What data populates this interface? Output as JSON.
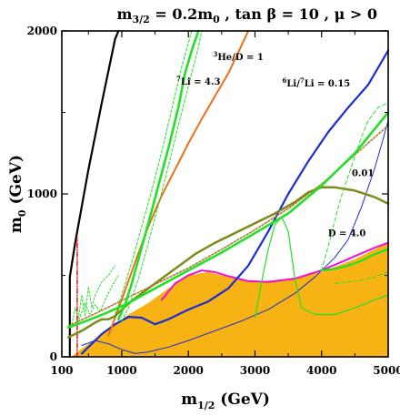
{
  "chart_data": {
    "type": "line",
    "title": {
      "m": "m",
      "m_sub": "3/2",
      "eq": " = 0.2m",
      "sub0": "0",
      "rest": " , tan β = 10 ,  μ > 0"
    },
    "xlabel": {
      "m": "m",
      "sub": "1/2",
      "unit": " (GeV)"
    },
    "ylabel": {
      "m": "m",
      "sub": "0",
      "unit": " (GeV)"
    },
    "xlim": [
      100,
      5000
    ],
    "ylim": [
      0,
      2000
    ],
    "xticks": [
      {
        "v": 100,
        "label": "100"
      },
      {
        "v": 1000,
        "label": "1000"
      },
      {
        "v": 2000,
        "label": "2000"
      },
      {
        "v": 3000,
        "label": "3000"
      },
      {
        "v": 4000,
        "label": "4000"
      },
      {
        "v": 5000,
        "label": "5000"
      }
    ],
    "yticks": [
      {
        "v": 0,
        "label": "0"
      },
      {
        "v": 1000,
        "label": "1000"
      },
      {
        "v": 2000,
        "label": "2000"
      }
    ],
    "annotations": [
      {
        "id": "he3",
        "pre": "3",
        "text": "He/D = 1",
        "x": 2750,
        "y": 1820
      },
      {
        "id": "li7",
        "pre": "7",
        "text": "Li = 4.3",
        "x": 2150,
        "y": 1670
      },
      {
        "id": "li6",
        "pre": "6",
        "text": "Li/",
        "pre2": "7",
        "text2": "Li = 0.15",
        "x": 3920,
        "y": 1660
      },
      {
        "id": "v001",
        "text": "0.01",
        "x": 4620,
        "y": 1110
      },
      {
        "id": "d4",
        "text": "D = 4.0",
        "x": 4380,
        "y": 740
      }
    ],
    "colors": {
      "fill": "#f7b313",
      "green": "#22e026",
      "orange": "#ea6f1a",
      "blue": "#1a2ed2",
      "olive": "#7c8c16",
      "magenta": "#f00fd8",
      "black": "#000000",
      "red": "#dd1414",
      "brown": "#b07a32"
    },
    "region": [
      [
        100,
        0
      ],
      [
        5000,
        0
      ],
      [
        5000,
        700
      ],
      [
        4500,
        600
      ],
      [
        4000,
        520
      ],
      [
        3500,
        480
      ],
      [
        3000,
        460
      ],
      [
        2800,
        470
      ],
      [
        2500,
        500
      ],
      [
        2300,
        520
      ],
      [
        2000,
        500
      ],
      [
        1700,
        420
      ],
      [
        1400,
        330
      ],
      [
        1100,
        260
      ],
      [
        900,
        200
      ],
      [
        700,
        140
      ],
      [
        500,
        80
      ],
      [
        300,
        20
      ],
      [
        250,
        0
      ]
    ],
    "series": [
      {
        "id": "black-line",
        "color": "black",
        "width": 2.2,
        "pts": [
          [
            220,
            0
          ],
          [
            220,
            490
          ],
          [
            300,
            700
          ],
          [
            500,
            1150
          ],
          [
            700,
            1560
          ],
          [
            900,
            1950
          ],
          [
            950,
            2000
          ]
        ]
      },
      {
        "id": "red-dashdot",
        "color": "red",
        "width": 1.5,
        "dash": "5,2,1,2",
        "pts": [
          [
            330,
            0
          ],
          [
            330,
            730
          ]
        ]
      },
      {
        "id": "magenta-line",
        "color": "magenta",
        "width": 2,
        "pts": [
          [
            1600,
            350
          ],
          [
            1800,
            450
          ],
          [
            2000,
            500
          ],
          [
            2200,
            530
          ],
          [
            2400,
            520
          ],
          [
            2600,
            495
          ],
          [
            2900,
            465
          ],
          [
            3200,
            460
          ],
          [
            3600,
            480
          ],
          [
            4000,
            530
          ],
          [
            4400,
            600
          ],
          [
            4800,
            670
          ],
          [
            5000,
            700
          ]
        ]
      },
      {
        "id": "blue-thick",
        "color": "blue",
        "width": 2.2,
        "pts": [
          [
            400,
            20
          ],
          [
            550,
            80
          ],
          [
            700,
            140
          ],
          [
            900,
            200
          ],
          [
            1100,
            245
          ],
          [
            1300,
            240
          ],
          [
            1500,
            200
          ],
          [
            1700,
            230
          ],
          [
            2000,
            290
          ],
          [
            2300,
            340
          ],
          [
            2600,
            420
          ],
          [
            2900,
            560
          ],
          [
            3200,
            770
          ],
          [
            3500,
            1000
          ],
          [
            3800,
            1200
          ],
          [
            4100,
            1380
          ],
          [
            4400,
            1530
          ],
          [
            4700,
            1670
          ],
          [
            5000,
            1880
          ]
        ]
      },
      {
        "id": "blue-thin",
        "color": "blue",
        "width": 1,
        "pts": [
          [
            400,
            70
          ],
          [
            600,
            100
          ],
          [
            800,
            80
          ],
          [
            1000,
            45
          ],
          [
            1200,
            20
          ],
          [
            1400,
            30
          ],
          [
            1700,
            60
          ],
          [
            2000,
            100
          ],
          [
            2400,
            160
          ],
          [
            2800,
            220
          ],
          [
            3200,
            290
          ],
          [
            3600,
            390
          ],
          [
            3900,
            490
          ],
          [
            4200,
            610
          ],
          [
            4400,
            720
          ],
          [
            4600,
            920
          ],
          [
            4800,
            1160
          ],
          [
            4920,
            1330
          ],
          [
            5000,
            1450
          ]
        ]
      },
      {
        "id": "orange-line",
        "color": "orange",
        "width": 2,
        "pts": [
          [
            800,
            130
          ],
          [
            1000,
            350
          ],
          [
            1200,
            580
          ],
          [
            1400,
            800
          ],
          [
            1600,
            990
          ],
          [
            1800,
            1150
          ],
          [
            2000,
            1310
          ],
          [
            2200,
            1460
          ],
          [
            2400,
            1600
          ],
          [
            2600,
            1740
          ],
          [
            2750,
            1870
          ],
          [
            2900,
            2000
          ]
        ]
      },
      {
        "id": "olive-line",
        "color": "olive",
        "width": 2.5,
        "pts": [
          [
            200,
            120
          ],
          [
            400,
            160
          ],
          [
            600,
            210
          ],
          [
            700,
            230
          ],
          [
            800,
            230
          ],
          [
            900,
            250
          ],
          [
            1000,
            290
          ],
          [
            1200,
            360
          ],
          [
            1500,
            450
          ],
          [
            1800,
            540
          ],
          [
            2100,
            630
          ],
          [
            2400,
            700
          ],
          [
            2700,
            760
          ],
          [
            3000,
            820
          ],
          [
            3300,
            880
          ],
          [
            3600,
            950
          ],
          [
            3800,
            1010
          ],
          [
            4000,
            1040
          ],
          [
            4200,
            1040
          ],
          [
            4500,
            1020
          ],
          [
            4800,
            980
          ],
          [
            5000,
            940
          ]
        ]
      },
      {
        "id": "brown-dotted",
        "color": "brown",
        "width": 1.6,
        "dash": "2,2",
        "pts": [
          [
            200,
            190
          ],
          [
            600,
            265
          ],
          [
            1000,
            345
          ],
          [
            1500,
            445
          ],
          [
            2000,
            545
          ],
          [
            2500,
            660
          ],
          [
            3000,
            780
          ],
          [
            3500,
            910
          ],
          [
            4000,
            1060
          ],
          [
            4500,
            1240
          ],
          [
            5000,
            1420
          ]
        ]
      },
      {
        "id": "green-lower",
        "color": "green",
        "width": 2.6,
        "pts": [
          [
            200,
            180
          ],
          [
            500,
            225
          ],
          [
            800,
            275
          ],
          [
            1100,
            330
          ],
          [
            1500,
            420
          ],
          [
            2000,
            530
          ],
          [
            2500,
            640
          ],
          [
            3000,
            760
          ],
          [
            3500,
            880
          ],
          [
            4000,
            1050
          ],
          [
            4500,
            1250
          ],
          [
            5000,
            1500
          ]
        ]
      },
      {
        "id": "green-upper",
        "color": "green",
        "width": 2.6,
        "pts": [
          [
            950,
            230
          ],
          [
            1050,
            320
          ],
          [
            1150,
            450
          ],
          [
            1250,
            600
          ],
          [
            1400,
            820
          ],
          [
            1550,
            1050
          ],
          [
            1700,
            1280
          ],
          [
            1850,
            1530
          ],
          [
            1950,
            1740
          ],
          [
            2050,
            1880
          ],
          [
            2150,
            2000
          ]
        ]
      },
      {
        "id": "green-upper-b",
        "color": "green",
        "width": 1,
        "dash": "3,2",
        "pts": [
          [
            900,
            260
          ],
          [
            1000,
            380
          ],
          [
            1150,
            580
          ],
          [
            1300,
            800
          ],
          [
            1450,
            1020
          ],
          [
            1600,
            1260
          ],
          [
            1750,
            1520
          ],
          [
            1900,
            1780
          ],
          [
            2050,
            2000
          ]
        ]
      },
      {
        "id": "green-upper-c",
        "color": "green",
        "width": 1,
        "dash": "3,2",
        "pts": [
          [
            1000,
            220
          ],
          [
            1100,
            300
          ],
          [
            1250,
            480
          ],
          [
            1400,
            700
          ],
          [
            1550,
            930
          ],
          [
            1700,
            1170
          ],
          [
            1850,
            1420
          ],
          [
            2000,
            1660
          ],
          [
            2150,
            1900
          ],
          [
            2200,
            2000
          ]
        ]
      },
      {
        "id": "green-wiggle",
        "color": "green",
        "width": 1,
        "dash": "2,2",
        "pts": [
          [
            250,
            200
          ],
          [
            300,
            300
          ],
          [
            350,
            240
          ],
          [
            400,
            380
          ],
          [
            450,
            250
          ],
          [
            500,
            430
          ],
          [
            550,
            300
          ],
          [
            600,
            380
          ],
          [
            700,
            460
          ],
          [
            800,
            500
          ],
          [
            900,
            560
          ]
        ]
      },
      {
        "id": "green-wiggle-b",
        "color": "green",
        "width": 1,
        "dash": "2,2",
        "pts": [
          [
            300,
            190
          ],
          [
            380,
            250
          ],
          [
            450,
            330
          ],
          [
            520,
            260
          ],
          [
            600,
            320
          ],
          [
            680,
            280
          ],
          [
            750,
            350
          ],
          [
            850,
            430
          ],
          [
            950,
            500
          ]
        ]
      },
      {
        "id": "green-thin",
        "color": "green",
        "width": 1.2,
        "pts": [
          [
            3000,
            240
          ],
          [
            3100,
            460
          ],
          [
            3200,
            660
          ],
          [
            3300,
            810
          ],
          [
            3400,
            860
          ],
          [
            3500,
            770
          ],
          [
            3550,
            620
          ],
          [
            3600,
            480
          ],
          [
            3700,
            300
          ],
          [
            3900,
            260
          ],
          [
            4200,
            260
          ],
          [
            4500,
            300
          ],
          [
            4800,
            350
          ],
          [
            5000,
            380
          ]
        ]
      },
      {
        "id": "green-dashed",
        "color": "green",
        "width": 1,
        "dash": "4,3",
        "pts": [
          [
            4000,
            530
          ],
          [
            4100,
            680
          ],
          [
            4200,
            840
          ],
          [
            4300,
            990
          ],
          [
            4400,
            1110
          ],
          [
            4500,
            1230
          ],
          [
            4600,
            1350
          ],
          [
            4700,
            1450
          ],
          [
            4850,
            1530
          ],
          [
            5000,
            1560
          ]
        ]
      },
      {
        "id": "green-dashed-low",
        "color": "green",
        "width": 1,
        "dash": "4,3",
        "pts": [
          [
            4200,
            450
          ],
          [
            4400,
            460
          ],
          [
            4600,
            470
          ],
          [
            4800,
            490
          ],
          [
            5000,
            520
          ]
        ]
      },
      {
        "id": "green-mid",
        "color": "green",
        "width": 2.2,
        "pts": [
          [
            4000,
            530
          ],
          [
            4200,
            540
          ],
          [
            4400,
            560
          ],
          [
            4600,
            590
          ],
          [
            4800,
            630
          ],
          [
            5000,
            660
          ]
        ]
      }
    ]
  }
}
